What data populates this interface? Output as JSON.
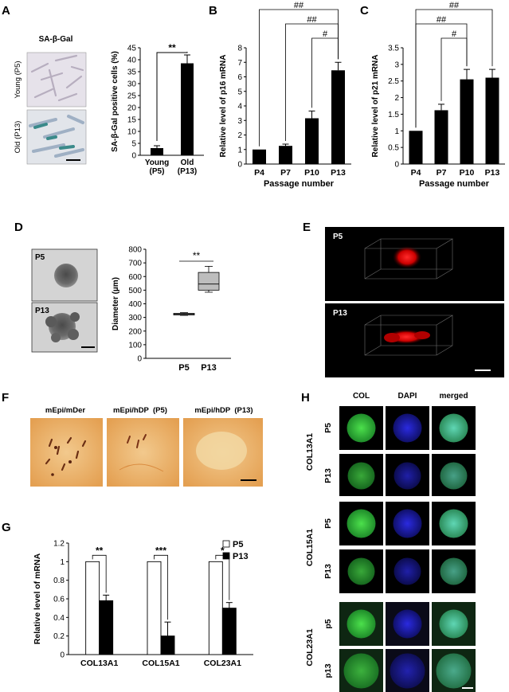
{
  "panels": {
    "A": {
      "letter": "A",
      "image_title": "SA-β-Gal",
      "image_rows": [
        "Young (P5)",
        "Old (P13)"
      ],
      "chart": {
        "type": "bar",
        "ylabel": "SA-β-Gal positive cells (%)",
        "ylim": [
          0,
          45
        ],
        "ticks": [
          0,
          5,
          10,
          15,
          20,
          25,
          30,
          35,
          40,
          45
        ],
        "categories": [
          [
            "Young",
            "(P5)"
          ],
          [
            "Old",
            "(P13)"
          ]
        ],
        "values": [
          3,
          38.5
        ],
        "errors": [
          1,
          3.5
        ],
        "sig": "**"
      }
    },
    "B": {
      "letter": "B",
      "chart": {
        "type": "bar",
        "ylabel": "Relative level of p16 mRNA",
        "xlabel": "Passage number",
        "ylim": [
          0,
          8
        ],
        "ticks": [
          0,
          1,
          2,
          3,
          4,
          5,
          6,
          7,
          8
        ],
        "categories": [
          "P4",
          "P7",
          "P10",
          "P13"
        ],
        "values": [
          1,
          1.25,
          3.15,
          6.45
        ],
        "errors": [
          0,
          0.12,
          0.5,
          0.55
        ],
        "sig": [
          {
            "label": "##",
            "from": 0,
            "to": 3
          },
          {
            "label": "##",
            "from": 1,
            "to": 3
          },
          {
            "label": "#",
            "from": 2,
            "to": 3
          }
        ]
      }
    },
    "C": {
      "letter": "C",
      "chart": {
        "type": "bar",
        "ylabel": "Relative level of p21 mRNA",
        "xlabel": "Passage number",
        "ylim": [
          0,
          3.5
        ],
        "ticks": [
          "0",
          "0.5",
          "1",
          "1.5",
          "2",
          "2.5",
          "3",
          "3.5"
        ],
        "categories": [
          "P4",
          "P7",
          "P10",
          "P13"
        ],
        "values": [
          1,
          1.62,
          2.55,
          2.6
        ],
        "errors": [
          0,
          0.18,
          0.3,
          0.25
        ],
        "sig": [
          {
            "label": "##",
            "from": 0,
            "to": 3
          },
          {
            "label": "##",
            "from": 0,
            "to": 2
          },
          {
            "label": "#",
            "from": 1,
            "to": 2
          }
        ]
      }
    },
    "D": {
      "letter": "D",
      "image_labels": [
        "P5",
        "P13"
      ],
      "chart": {
        "type": "box",
        "ylabel": "Diameter (µm)",
        "ylim": [
          0,
          800
        ],
        "ticks": [
          0,
          100,
          200,
          300,
          400,
          500,
          600,
          700,
          800
        ],
        "categories": [
          "P5",
          "P13"
        ],
        "boxes": [
          {
            "min": 315,
            "q1": 318,
            "median": 324,
            "q3": 330,
            "max": 335
          },
          {
            "min": 485,
            "q1": 500,
            "median": 545,
            "q3": 630,
            "max": 675
          }
        ],
        "sig": "**"
      }
    },
    "E": {
      "letter": "E",
      "image_labels": [
        "P5",
        "P13"
      ]
    },
    "F": {
      "letter": "F",
      "image_labels": [
        "mEpi/mDer",
        "mEpi/hDP  (P5)",
        "mEpi/hDP  (P13)"
      ]
    },
    "G": {
      "letter": "G",
      "chart": {
        "type": "bar",
        "ylabel": "Relative level of mRNA",
        "ylim": [
          0,
          1.2
        ],
        "ticks": [
          "0",
          "0.2",
          "0.4",
          "0.6",
          "0.8",
          "1",
          "1.2"
        ],
        "categories": [
          "COL13A1",
          "COL15A1",
          "COL23A1"
        ],
        "series": [
          {
            "name": "P5",
            "values": [
              1,
              1,
              1
            ],
            "errors": [
              0,
              0,
              0
            ],
            "color": "#ffffff"
          },
          {
            "name": "P13",
            "values": [
              0.58,
              0.2,
              0.5
            ],
            "errors": [
              0.06,
              0.15,
              0.06
            ],
            "color": "#000000"
          }
        ],
        "sig": [
          "**",
          "***",
          "*"
        ],
        "legend": "top-right"
      }
    },
    "H": {
      "letter": "H",
      "columns": [
        "COL",
        "DAPI",
        "merged"
      ],
      "groups": [
        {
          "name": "COL13A1",
          "rows": [
            "P5",
            "P13"
          ]
        },
        {
          "name": "COL15A1",
          "rows": [
            "P5",
            "P13"
          ]
        },
        {
          "name": "COL23A1",
          "rows": [
            "p5",
            "p13"
          ]
        }
      ]
    }
  }
}
